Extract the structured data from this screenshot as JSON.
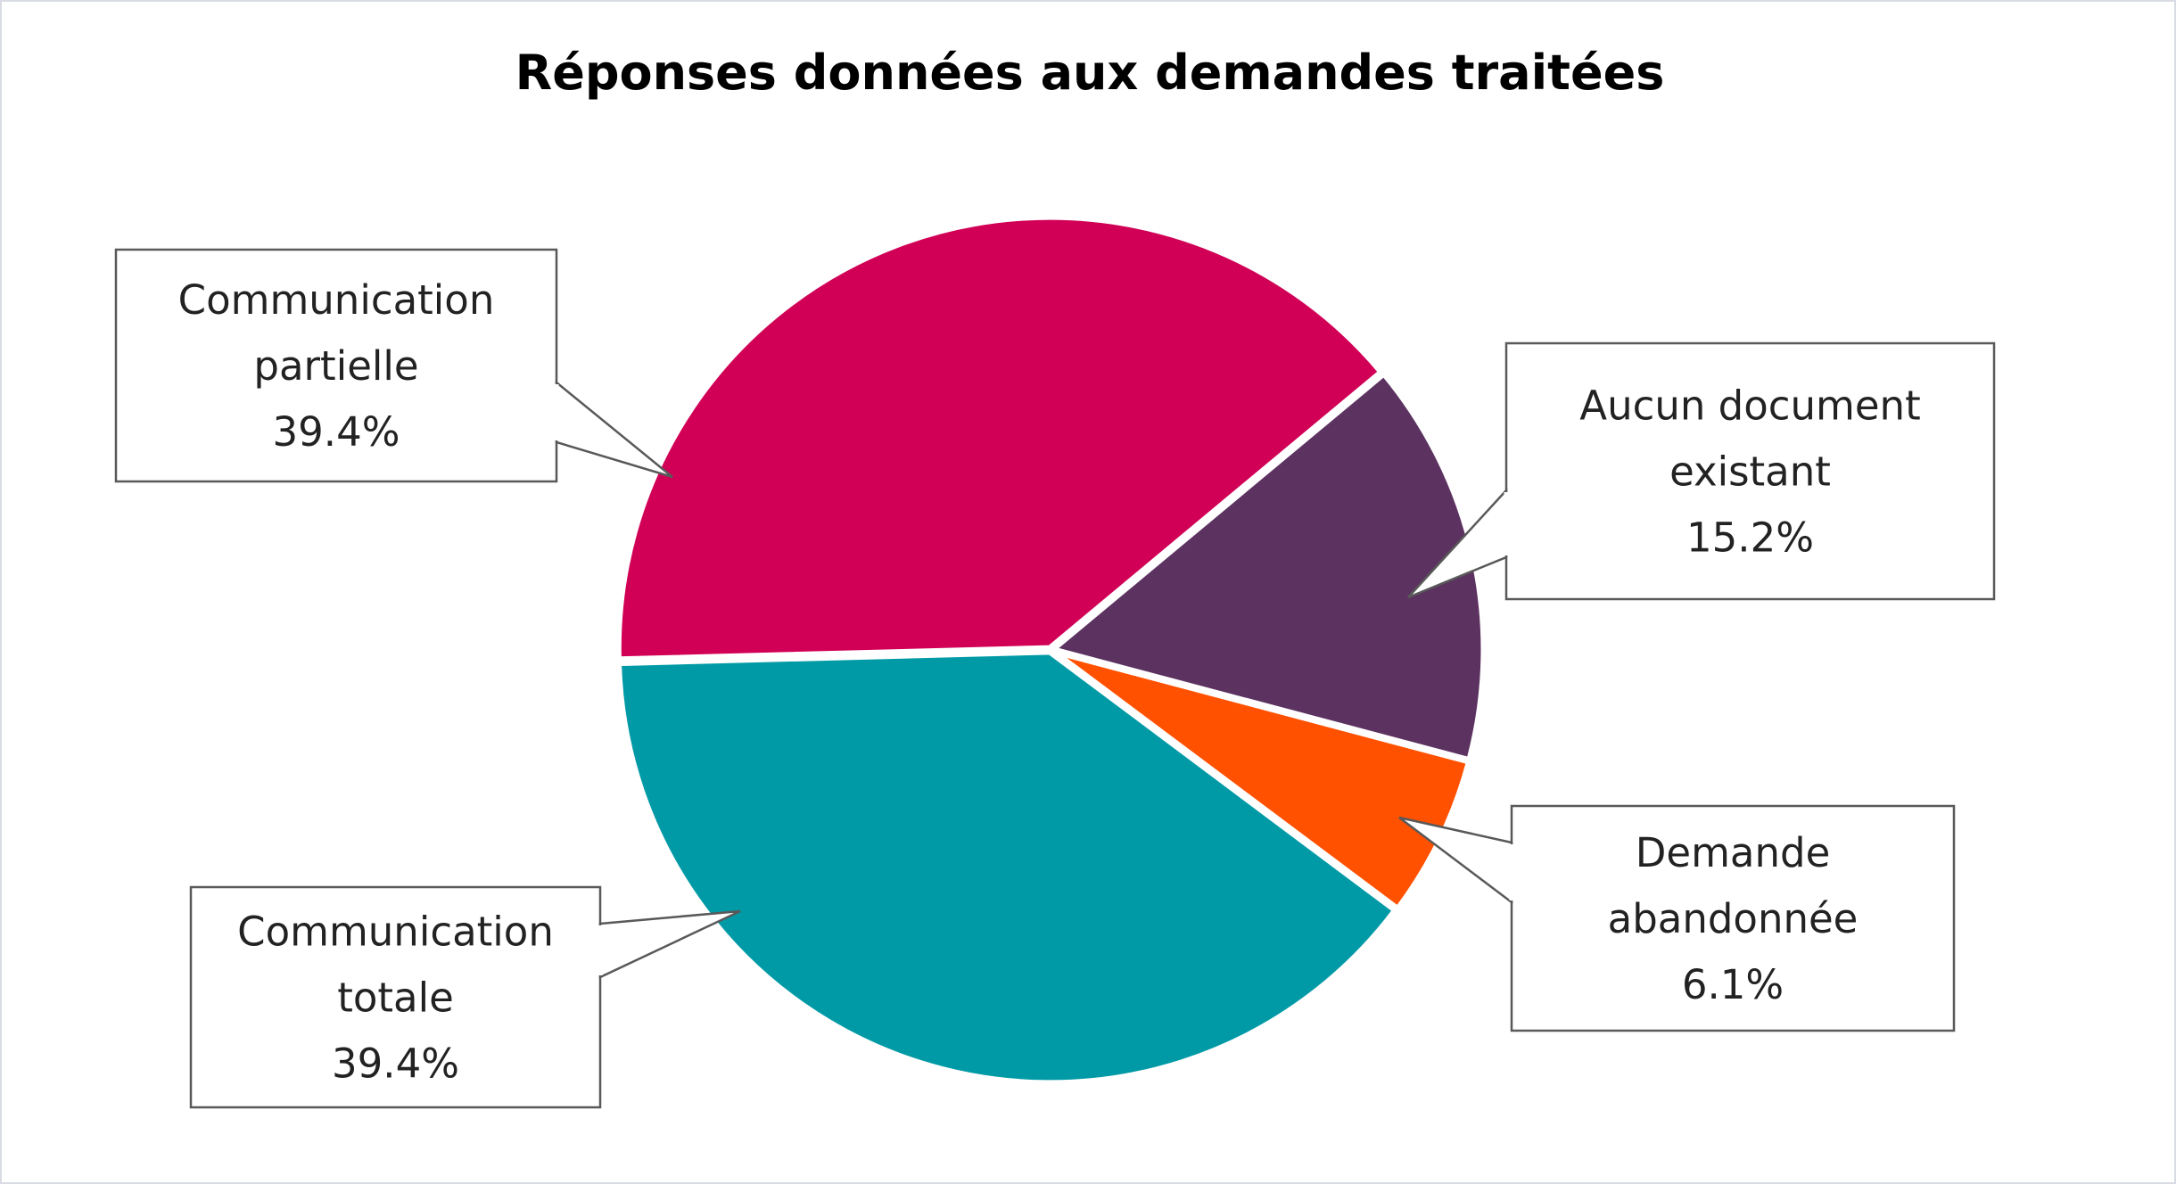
{
  "chart_data": {
    "type": "pie",
    "title": "Réponses données aux demandes traitées",
    "slices": [
      {
        "name": "Communication partielle",
        "label_lines": [
          "Communication",
          "partielle"
        ],
        "value": 39.4,
        "value_label": "39.4%",
        "color": "#d10056"
      },
      {
        "name": "Aucun document existant",
        "label_lines": [
          "Aucun document",
          "existant"
        ],
        "value": 15.2,
        "value_label": "15.2%",
        "color": "#5c3260"
      },
      {
        "name": "Demande abandonnée",
        "label_lines": [
          "Demande",
          "abandonnée"
        ],
        "value": 6.1,
        "value_label": "6.1%",
        "color": "#ff5100"
      },
      {
        "name": "Communication totale",
        "label_lines": [
          "Communication",
          "totale"
        ],
        "value": 39.4,
        "value_label": "39.4%",
        "color": "#009aa6"
      }
    ]
  }
}
